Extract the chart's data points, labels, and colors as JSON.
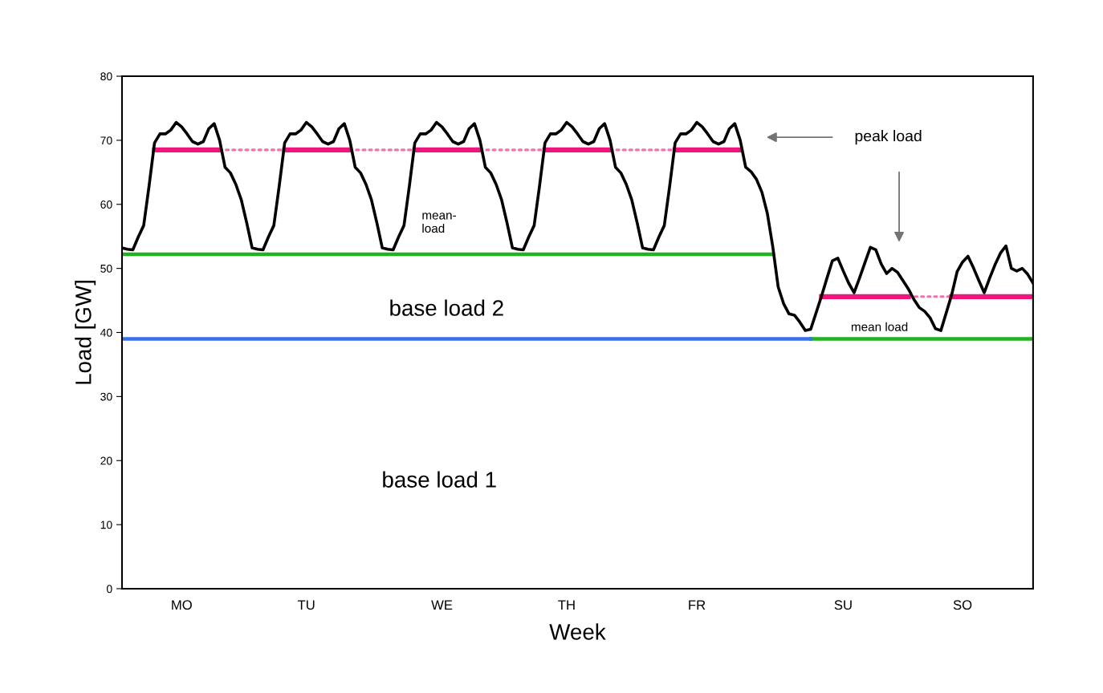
{
  "chart_data": {
    "type": "line",
    "xlabel": "Week",
    "ylabel": "Load [GW]",
    "categories": [
      null,
      null,
      null,
      null,
      null,
      null,
      null,
      null,
      null,
      null,
      null,
      "MO",
      null,
      null,
      null,
      null,
      null,
      null,
      null,
      null,
      null,
      null,
      null,
      null,
      null,
      null,
      null,
      null,
      null,
      null,
      null,
      null,
      null,
      null,
      "TU",
      null,
      null,
      null,
      null,
      null,
      null,
      null,
      null,
      null,
      null,
      null,
      null,
      null,
      null,
      null,
      null,
      null,
      null,
      null,
      null,
      null,
      null,
      null,
      null,
      "WE",
      null,
      null,
      null,
      null,
      null,
      null,
      null,
      null,
      null,
      null,
      null,
      null,
      null,
      null,
      null,
      null,
      null,
      null,
      null,
      null,
      null,
      null,
      "TH",
      null,
      null,
      null,
      null,
      null,
      null,
      null,
      null,
      null,
      null,
      null,
      null,
      null,
      null,
      null,
      null,
      null,
      null,
      null,
      null,
      null,
      null,
      null,
      "FR",
      null,
      null,
      null,
      null,
      null,
      null,
      null,
      null,
      null,
      null,
      null,
      null,
      null,
      null,
      null,
      null,
      null,
      null,
      null,
      null,
      null,
      null,
      null,
      null,
      null,
      null,
      "SU",
      null,
      null,
      null,
      null,
      null,
      null,
      null,
      null,
      null,
      null,
      null,
      null,
      null,
      null,
      null,
      null,
      null,
      null,
      null,
      null,
      null,
      "SO",
      null,
      null,
      null,
      null,
      null,
      null,
      null,
      null,
      null,
      null,
      null,
      null,
      null
    ],
    "ylim": [
      0,
      80
    ],
    "yticks": [
      0,
      10,
      20,
      30,
      40,
      50,
      60,
      70,
      80
    ],
    "grid": false,
    "legend": false,
    "marker": "none",
    "series": [
      {
        "color": "#1fb31f",
        "line_style": "solid",
        "values": [
          52.2,
          52.2,
          52.2,
          52.2,
          52.2,
          52.2,
          52.2,
          52.2,
          52.2,
          52.2,
          52.2,
          52.2,
          52.2,
          52.2,
          52.2,
          52.2,
          52.2,
          52.2,
          52.2,
          52.2,
          52.2,
          52.2,
          52.2,
          52.2,
          52.2,
          52.2,
          52.2,
          52.2,
          52.2,
          52.2,
          52.2,
          52.2,
          52.2,
          52.2,
          52.2,
          52.2,
          52.2,
          52.2,
          52.2,
          52.2,
          52.2,
          52.2,
          52.2,
          52.2,
          52.2,
          52.2,
          52.2,
          52.2,
          52.2,
          52.2,
          52.2,
          52.2,
          52.2,
          52.2,
          52.2,
          52.2,
          52.2,
          52.2,
          52.2,
          52.2,
          52.2,
          52.2,
          52.2,
          52.2,
          52.2,
          52.2,
          52.2,
          52.2,
          52.2,
          52.2,
          52.2,
          52.2,
          52.2,
          52.2,
          52.2,
          52.2,
          52.2,
          52.2,
          52.2,
          52.2,
          52.2,
          52.2,
          52.2,
          52.2,
          52.2,
          52.2,
          52.2,
          52.2,
          52.2,
          52.2,
          52.2,
          52.2,
          52.2,
          52.2,
          52.2,
          52.2,
          52.2,
          52.2,
          52.2,
          52.2,
          52.2,
          52.2,
          52.2,
          52.2,
          52.2,
          52.2,
          52.2,
          52.2,
          52.2,
          52.2,
          52.2,
          52.2,
          52.2,
          52.2,
          52.2,
          52.2,
          52.2,
          52.2,
          52.2,
          52.2,
          52.2,
          null,
          null,
          null,
          null,
          null,
          null,
          39,
          39,
          39,
          39,
          39,
          39,
          39,
          39,
          39,
          39,
          39,
          39,
          39,
          39,
          39,
          39,
          39,
          39,
          39,
          39,
          39,
          39,
          39,
          39,
          39,
          39,
          39,
          39,
          39,
          39,
          39,
          39,
          39,
          39,
          39,
          39,
          39,
          39,
          39,
          39,
          39,
          39
        ]
      },
      {
        "color": "#3a6ff0",
        "line_style": "solid",
        "values": [
          39,
          39,
          39,
          39,
          39,
          39,
          39,
          39,
          39,
          39,
          39,
          39,
          39,
          39,
          39,
          39,
          39,
          39,
          39,
          39,
          39,
          39,
          39,
          39,
          39,
          39,
          39,
          39,
          39,
          39,
          39,
          39,
          39,
          39,
          39,
          39,
          39,
          39,
          39,
          39,
          39,
          39,
          39,
          39,
          39,
          39,
          39,
          39,
          39,
          39,
          39,
          39,
          39,
          39,
          39,
          39,
          39,
          39,
          39,
          39,
          39,
          39,
          39,
          39,
          39,
          39,
          39,
          39,
          39,
          39,
          39,
          39,
          39,
          39,
          39,
          39,
          39,
          39,
          39,
          39,
          39,
          39,
          39,
          39,
          39,
          39,
          39,
          39,
          39,
          39,
          39,
          39,
          39,
          39,
          39,
          39,
          39,
          39,
          39,
          39,
          39,
          39,
          39,
          39,
          39,
          39,
          39,
          39,
          39,
          39,
          39,
          39,
          39,
          39,
          39,
          39,
          39,
          39,
          39,
          39,
          39,
          39,
          39,
          39,
          39,
          39,
          39,
          39,
          null,
          null,
          null,
          null,
          null,
          null,
          null,
          null,
          null,
          null,
          null,
          null,
          null,
          null,
          null,
          null,
          null,
          null,
          null,
          null,
          null,
          null,
          null,
          null,
          null,
          null,
          null,
          null,
          null,
          null,
          null,
          null,
          null,
          null,
          null,
          null,
          null,
          null,
          null,
          null,
          null
        ]
      },
      {
        "color": "#f56eb0",
        "line_style": "dotted",
        "values": [
          null,
          null,
          null,
          null,
          null,
          null,
          null,
          null,
          null,
          null,
          null,
          null,
          null,
          null,
          null,
          null,
          null,
          null,
          68.5,
          68.5,
          68.5,
          68.5,
          68.5,
          68.5,
          68.5,
          68.5,
          68.5,
          68.5,
          68.5,
          68.5,
          68.5,
          null,
          null,
          null,
          null,
          null,
          null,
          null,
          null,
          null,
          null,
          null,
          68.5,
          68.5,
          68.5,
          68.5,
          68.5,
          68.5,
          68.5,
          68.5,
          68.5,
          68.5,
          68.5,
          68.5,
          68.5,
          null,
          null,
          null,
          null,
          null,
          null,
          null,
          null,
          null,
          null,
          null,
          68.5,
          68.5,
          68.5,
          68.5,
          68.5,
          68.5,
          68.5,
          68.5,
          68.5,
          68.5,
          68.5,
          68.5,
          68.5,
          null,
          null,
          null,
          null,
          null,
          null,
          null,
          null,
          null,
          null,
          null,
          68.5,
          68.5,
          68.5,
          68.5,
          68.5,
          68.5,
          68.5,
          68.5,
          68.5,
          68.5,
          68.5,
          68.5,
          68.5,
          null,
          null,
          null,
          null,
          null,
          null,
          null,
          null,
          null,
          null,
          null,
          null,
          null,
          null,
          null,
          null,
          null,
          null,
          null,
          null,
          null,
          null,
          null,
          null,
          null,
          null,
          null,
          null,
          null,
          null,
          null,
          null,
          null,
          null,
          null,
          null,
          null,
          null,
          null,
          null,
          null,
          null,
          45.6,
          45.6,
          45.6,
          45.6,
          45.6,
          45.6,
          45.6,
          45.6,
          45.6,
          null,
          null,
          null,
          null,
          null,
          null,
          null,
          null,
          null,
          null,
          null,
          null,
          null,
          null,
          null
        ]
      },
      {
        "color": "#f0147f",
        "line_style": "solid",
        "values": [
          null,
          null,
          null,
          null,
          null,
          null,
          68.5,
          68.5,
          68.5,
          68.5,
          68.5,
          68.5,
          68.5,
          68.5,
          68.5,
          68.5,
          68.5,
          68.5,
          68.5,
          null,
          null,
          null,
          null,
          null,
          null,
          null,
          null,
          null,
          null,
          null,
          68.5,
          68.5,
          68.5,
          68.5,
          68.5,
          68.5,
          68.5,
          68.5,
          68.5,
          68.5,
          68.5,
          68.5,
          68.5,
          null,
          null,
          null,
          null,
          null,
          null,
          null,
          null,
          null,
          null,
          null,
          68.5,
          68.5,
          68.5,
          68.5,
          68.5,
          68.5,
          68.5,
          68.5,
          68.5,
          68.5,
          68.5,
          68.5,
          68.5,
          null,
          null,
          null,
          null,
          null,
          null,
          null,
          null,
          null,
          null,
          null,
          68.5,
          68.5,
          68.5,
          68.5,
          68.5,
          68.5,
          68.5,
          68.5,
          68.5,
          68.5,
          68.5,
          68.5,
          68.5,
          null,
          null,
          null,
          null,
          null,
          null,
          null,
          null,
          null,
          null,
          null,
          68.5,
          68.5,
          68.5,
          68.5,
          68.5,
          68.5,
          68.5,
          68.5,
          68.5,
          68.5,
          68.5,
          68.5,
          68.5,
          null,
          null,
          null,
          null,
          null,
          null,
          null,
          null,
          null,
          null,
          null,
          null,
          null,
          null,
          45.6,
          45.6,
          45.6,
          45.6,
          45.6,
          45.6,
          45.6,
          45.6,
          45.6,
          45.6,
          45.6,
          45.6,
          45.6,
          45.6,
          45.6,
          45.6,
          45.6,
          null,
          null,
          null,
          null,
          null,
          null,
          null,
          45.6,
          45.6,
          45.6,
          45.6,
          45.6,
          45.6,
          45.6,
          45.6,
          45.6,
          45.6,
          45.6,
          45.6,
          45.6,
          45.6,
          45.6,
          45.6
        ]
      },
      {
        "color": "#000000",
        "line_style": "solid",
        "values": [
          53.2,
          53.0,
          52.9,
          54.9,
          56.7,
          62.9,
          69.6,
          71.0,
          71.0,
          71.6,
          72.8,
          72.1,
          71.0,
          69.8,
          69.4,
          69.8,
          71.8,
          72.6,
          70.0,
          65.8,
          64.9,
          63.1,
          60.7,
          57.1,
          53.2,
          53.0,
          52.9,
          54.9,
          56.7,
          62.9,
          69.6,
          71.0,
          71.0,
          71.6,
          72.8,
          72.1,
          71.0,
          69.8,
          69.4,
          69.8,
          71.8,
          72.6,
          70.0,
          65.8,
          64.9,
          63.1,
          60.7,
          57.1,
          53.2,
          53.0,
          52.9,
          54.9,
          56.7,
          62.9,
          69.6,
          71.0,
          71.0,
          71.6,
          72.8,
          72.1,
          71.0,
          69.8,
          69.4,
          69.8,
          71.8,
          72.6,
          70.0,
          65.8,
          64.9,
          63.1,
          60.7,
          57.1,
          53.2,
          53.0,
          52.9,
          54.9,
          56.7,
          62.9,
          69.6,
          71.0,
          71.0,
          71.6,
          72.8,
          72.1,
          71.0,
          69.8,
          69.4,
          69.8,
          71.8,
          72.6,
          70.0,
          65.8,
          64.9,
          63.1,
          60.7,
          57.1,
          53.2,
          53.0,
          52.9,
          54.9,
          56.7,
          62.9,
          69.6,
          71.0,
          71.0,
          71.6,
          72.8,
          72.1,
          71.0,
          69.8,
          69.4,
          69.8,
          71.8,
          72.6,
          70.0,
          65.8,
          65.1,
          63.9,
          61.9,
          58.6,
          53.4,
          47.1,
          44.5,
          42.9,
          42.7,
          41.6,
          40.3,
          40.5,
          43.1,
          45.7,
          48.5,
          51.2,
          51.6,
          49.6,
          47.7,
          46.2,
          48.5,
          50.9,
          53.3,
          52.9,
          50.7,
          49.2,
          50.0,
          49.4,
          48.1,
          46.8,
          45.2,
          43.9,
          43.3,
          42.3,
          40.6,
          40.3,
          43.1,
          45.9,
          49.5,
          51.0,
          51.9,
          50.1,
          48.1,
          46.2,
          48.5,
          50.6,
          52.4,
          53.5,
          50.0,
          49.6,
          50.0,
          49.1,
          47.7
        ]
      }
    ],
    "annotations": [
      "peak load",
      "mean-\nload",
      "mean load",
      "base load 2",
      "base load 1"
    ]
  }
}
